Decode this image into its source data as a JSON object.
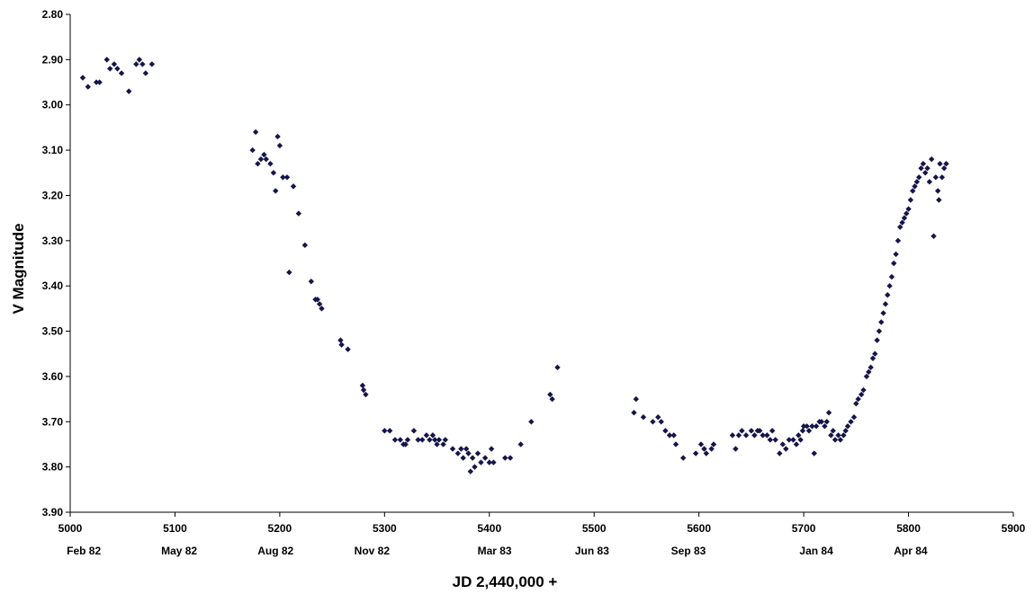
{
  "chart_data": {
    "type": "scatter",
    "xlabel": "JD 2,440,000 +",
    "ylabel": "V Magnitude",
    "xlim": [
      5000,
      5900
    ],
    "ylim": [
      3.9,
      2.8
    ],
    "y_inverted": true,
    "grid": false,
    "marker_color": "#15154a",
    "x_ticks": [
      "5000",
      "5100",
      "5200",
      "5300",
      "5400",
      "5500",
      "5600",
      "5700",
      "5800",
      "5900"
    ],
    "y_ticks": [
      "2.80",
      "2.90",
      "3.00",
      "3.10",
      "3.20",
      "3.30",
      "3.40",
      "3.50",
      "3.60",
      "3.70",
      "3.80",
      "3.90"
    ],
    "month_labels": [
      {
        "label": "Feb 82",
        "x": 5013
      },
      {
        "label": "May 82",
        "x": 5104
      },
      {
        "label": "Aug 82",
        "x": 5196
      },
      {
        "label": "Nov 82",
        "x": 5288
      },
      {
        "label": "Mar 83",
        "x": 5405
      },
      {
        "label": "Jun 83",
        "x": 5498
      },
      {
        "label": "Sep 83",
        "x": 5590
      },
      {
        "label": "Jan 84",
        "x": 5712
      },
      {
        "label": "Apr 84",
        "x": 5802
      }
    ],
    "points": [
      [
        5012,
        2.94
      ],
      [
        5017,
        2.96
      ],
      [
        5025,
        2.95
      ],
      [
        5028,
        2.95
      ],
      [
        5035,
        2.9
      ],
      [
        5038,
        2.92
      ],
      [
        5042,
        2.91
      ],
      [
        5045,
        2.92
      ],
      [
        5049,
        2.93
      ],
      [
        5056,
        2.97
      ],
      [
        5063,
        2.91
      ],
      [
        5066,
        2.9
      ],
      [
        5069,
        2.91
      ],
      [
        5072,
        2.93
      ],
      [
        5078,
        2.91
      ],
      [
        5174,
        3.1
      ],
      [
        5177,
        3.06
      ],
      [
        5179,
        3.13
      ],
      [
        5182,
        3.12
      ],
      [
        5185,
        3.11
      ],
      [
        5187,
        3.12
      ],
      [
        5191,
        3.13
      ],
      [
        5194,
        3.15
      ],
      [
        5196,
        3.19
      ],
      [
        5198,
        3.07
      ],
      [
        5200,
        3.09
      ],
      [
        5203,
        3.16
      ],
      [
        5207,
        3.16
      ],
      [
        5209,
        3.37
      ],
      [
        5213,
        3.18
      ],
      [
        5218,
        3.24
      ],
      [
        5224,
        3.31
      ],
      [
        5230,
        3.39
      ],
      [
        5234,
        3.43
      ],
      [
        5236,
        3.43
      ],
      [
        5238,
        3.44
      ],
      [
        5240,
        3.45
      ],
      [
        5258,
        3.52
      ],
      [
        5259,
        3.53
      ],
      [
        5265,
        3.54
      ],
      [
        5279,
        3.62
      ],
      [
        5280,
        3.63
      ],
      [
        5282,
        3.64
      ],
      [
        5300,
        3.72
      ],
      [
        5305,
        3.72
      ],
      [
        5310,
        3.74
      ],
      [
        5315,
        3.74
      ],
      [
        5318,
        3.75
      ],
      [
        5320,
        3.75
      ],
      [
        5322,
        3.74
      ],
      [
        5328,
        3.72
      ],
      [
        5332,
        3.74
      ],
      [
        5336,
        3.74
      ],
      [
        5340,
        3.73
      ],
      [
        5343,
        3.74
      ],
      [
        5346,
        3.73
      ],
      [
        5348,
        3.74
      ],
      [
        5350,
        3.75
      ],
      [
        5352,
        3.74
      ],
      [
        5356,
        3.75
      ],
      [
        5358,
        3.74
      ],
      [
        5365,
        3.76
      ],
      [
        5370,
        3.77
      ],
      [
        5373,
        3.76
      ],
      [
        5375,
        3.78
      ],
      [
        5378,
        3.76
      ],
      [
        5380,
        3.77
      ],
      [
        5382,
        3.81
      ],
      [
        5384,
        3.78
      ],
      [
        5386,
        3.8
      ],
      [
        5389,
        3.77
      ],
      [
        5392,
        3.79
      ],
      [
        5396,
        3.78
      ],
      [
        5400,
        3.79
      ],
      [
        5402,
        3.76
      ],
      [
        5404,
        3.79
      ],
      [
        5415,
        3.78
      ],
      [
        5420,
        3.78
      ],
      [
        5430,
        3.75
      ],
      [
        5440,
        3.7
      ],
      [
        5458,
        3.64
      ],
      [
        5460,
        3.65
      ],
      [
        5465,
        3.58
      ],
      [
        5538,
        3.68
      ],
      [
        5540,
        3.65
      ],
      [
        5547,
        3.69
      ],
      [
        5556,
        3.7
      ],
      [
        5561,
        3.69
      ],
      [
        5564,
        3.7
      ],
      [
        5568,
        3.72
      ],
      [
        5572,
        3.73
      ],
      [
        5576,
        3.73
      ],
      [
        5578,
        3.75
      ],
      [
        5585,
        3.78
      ],
      [
        5597,
        3.77
      ],
      [
        5602,
        3.75
      ],
      [
        5605,
        3.76
      ],
      [
        5607,
        3.77
      ],
      [
        5612,
        3.76
      ],
      [
        5614,
        3.75
      ],
      [
        5632,
        3.73
      ],
      [
        5635,
        3.76
      ],
      [
        5638,
        3.73
      ],
      [
        5641,
        3.72
      ],
      [
        5645,
        3.73
      ],
      [
        5650,
        3.72
      ],
      [
        5653,
        3.73
      ],
      [
        5656,
        3.72
      ],
      [
        5658,
        3.72
      ],
      [
        5661,
        3.73
      ],
      [
        5665,
        3.73
      ],
      [
        5668,
        3.74
      ],
      [
        5670,
        3.72
      ],
      [
        5673,
        3.74
      ],
      [
        5677,
        3.77
      ],
      [
        5680,
        3.75
      ],
      [
        5683,
        3.76
      ],
      [
        5686,
        3.74
      ],
      [
        5690,
        3.74
      ],
      [
        5693,
        3.75
      ],
      [
        5695,
        3.73
      ],
      [
        5697,
        3.74
      ],
      [
        5699,
        3.72
      ],
      [
        5700,
        3.71
      ],
      [
        5703,
        3.71
      ],
      [
        5705,
        3.72
      ],
      [
        5708,
        3.71
      ],
      [
        5710,
        3.77
      ],
      [
        5712,
        3.71
      ],
      [
        5715,
        3.7
      ],
      [
        5717,
        3.7
      ],
      [
        5720,
        3.71
      ],
      [
        5722,
        3.7
      ],
      [
        5724,
        3.68
      ],
      [
        5726,
        3.73
      ],
      [
        5728,
        3.72
      ],
      [
        5730,
        3.74
      ],
      [
        5733,
        3.73
      ],
      [
        5735,
        3.74
      ],
      [
        5738,
        3.73
      ],
      [
        5740,
        3.72
      ],
      [
        5742,
        3.71
      ],
      [
        5745,
        3.7
      ],
      [
        5748,
        3.69
      ],
      [
        5750,
        3.66
      ],
      [
        5752,
        3.65
      ],
      [
        5755,
        3.64
      ],
      [
        5757,
        3.63
      ],
      [
        5760,
        3.6
      ],
      [
        5762,
        3.59
      ],
      [
        5764,
        3.58
      ],
      [
        5766,
        3.56
      ],
      [
        5768,
        3.55
      ],
      [
        5770,
        3.52
      ],
      [
        5772,
        3.5
      ],
      [
        5774,
        3.48
      ],
      [
        5776,
        3.46
      ],
      [
        5778,
        3.44
      ],
      [
        5780,
        3.42
      ],
      [
        5782,
        3.4
      ],
      [
        5784,
        3.38
      ],
      [
        5786,
        3.35
      ],
      [
        5788,
        3.33
      ],
      [
        5790,
        3.3
      ],
      [
        5792,
        3.27
      ],
      [
        5794,
        3.26
      ],
      [
        5796,
        3.25
      ],
      [
        5798,
        3.24
      ],
      [
        5800,
        3.23
      ],
      [
        5802,
        3.21
      ],
      [
        5804,
        3.19
      ],
      [
        5806,
        3.18
      ],
      [
        5808,
        3.17
      ],
      [
        5810,
        3.16
      ],
      [
        5812,
        3.14
      ],
      [
        5814,
        3.13
      ],
      [
        5816,
        3.15
      ],
      [
        5818,
        3.14
      ],
      [
        5820,
        3.17
      ],
      [
        5822,
        3.12
      ],
      [
        5824,
        3.29
      ],
      [
        5826,
        3.16
      ],
      [
        5828,
        3.19
      ],
      [
        5829,
        3.21
      ],
      [
        5830,
        3.13
      ],
      [
        5832,
        3.16
      ],
      [
        5834,
        3.14
      ],
      [
        5836,
        3.13
      ]
    ]
  }
}
